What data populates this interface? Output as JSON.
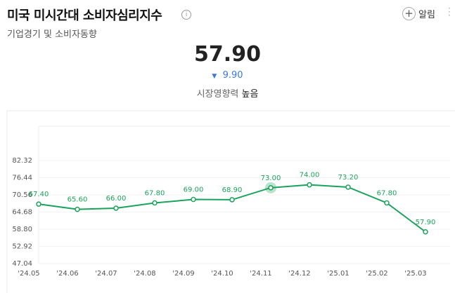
{
  "header": {
    "title": "미국 미시간대 소비자심리지수",
    "subtitle": "기업경기 및 소비자동향",
    "alert": "알림"
  },
  "summary": {
    "value": "57.90",
    "change": "9.90",
    "influence_label": "시장영향력",
    "influence": "높음"
  },
  "chart_data": {
    "type": "line",
    "categories": [
      "'24.05",
      "'24.06",
      "'24.07",
      "'24.08",
      "'24.09",
      "'24.10",
      "'24.11",
      "'24.12",
      "'25.01",
      "'25.02",
      "'25.03"
    ],
    "series": [
      {
        "name": "미국 미시간대 소비자심리지수",
        "color": "#1aa35a",
        "values": [
          67.4,
          65.6,
          66.0,
          67.8,
          69.0,
          68.9,
          73.0,
          74.0,
          73.2,
          67.8,
          57.9
        ],
        "value_labels": [
          "67.40",
          "65.60",
          "66.00",
          "67.80",
          "69.00",
          "68.90",
          "73.00",
          "74.00",
          "73.20",
          "67.80",
          "57.90"
        ]
      }
    ],
    "ylim": [
      47.04,
      94.08
    ],
    "yticks": [
      47.04,
      52.92,
      {
        "value": 58.8,
        "label": "58.80"
      },
      64.68,
      70.56,
      76.44,
      82.32
    ],
    "grid": true,
    "highlight_index": 6
  }
}
